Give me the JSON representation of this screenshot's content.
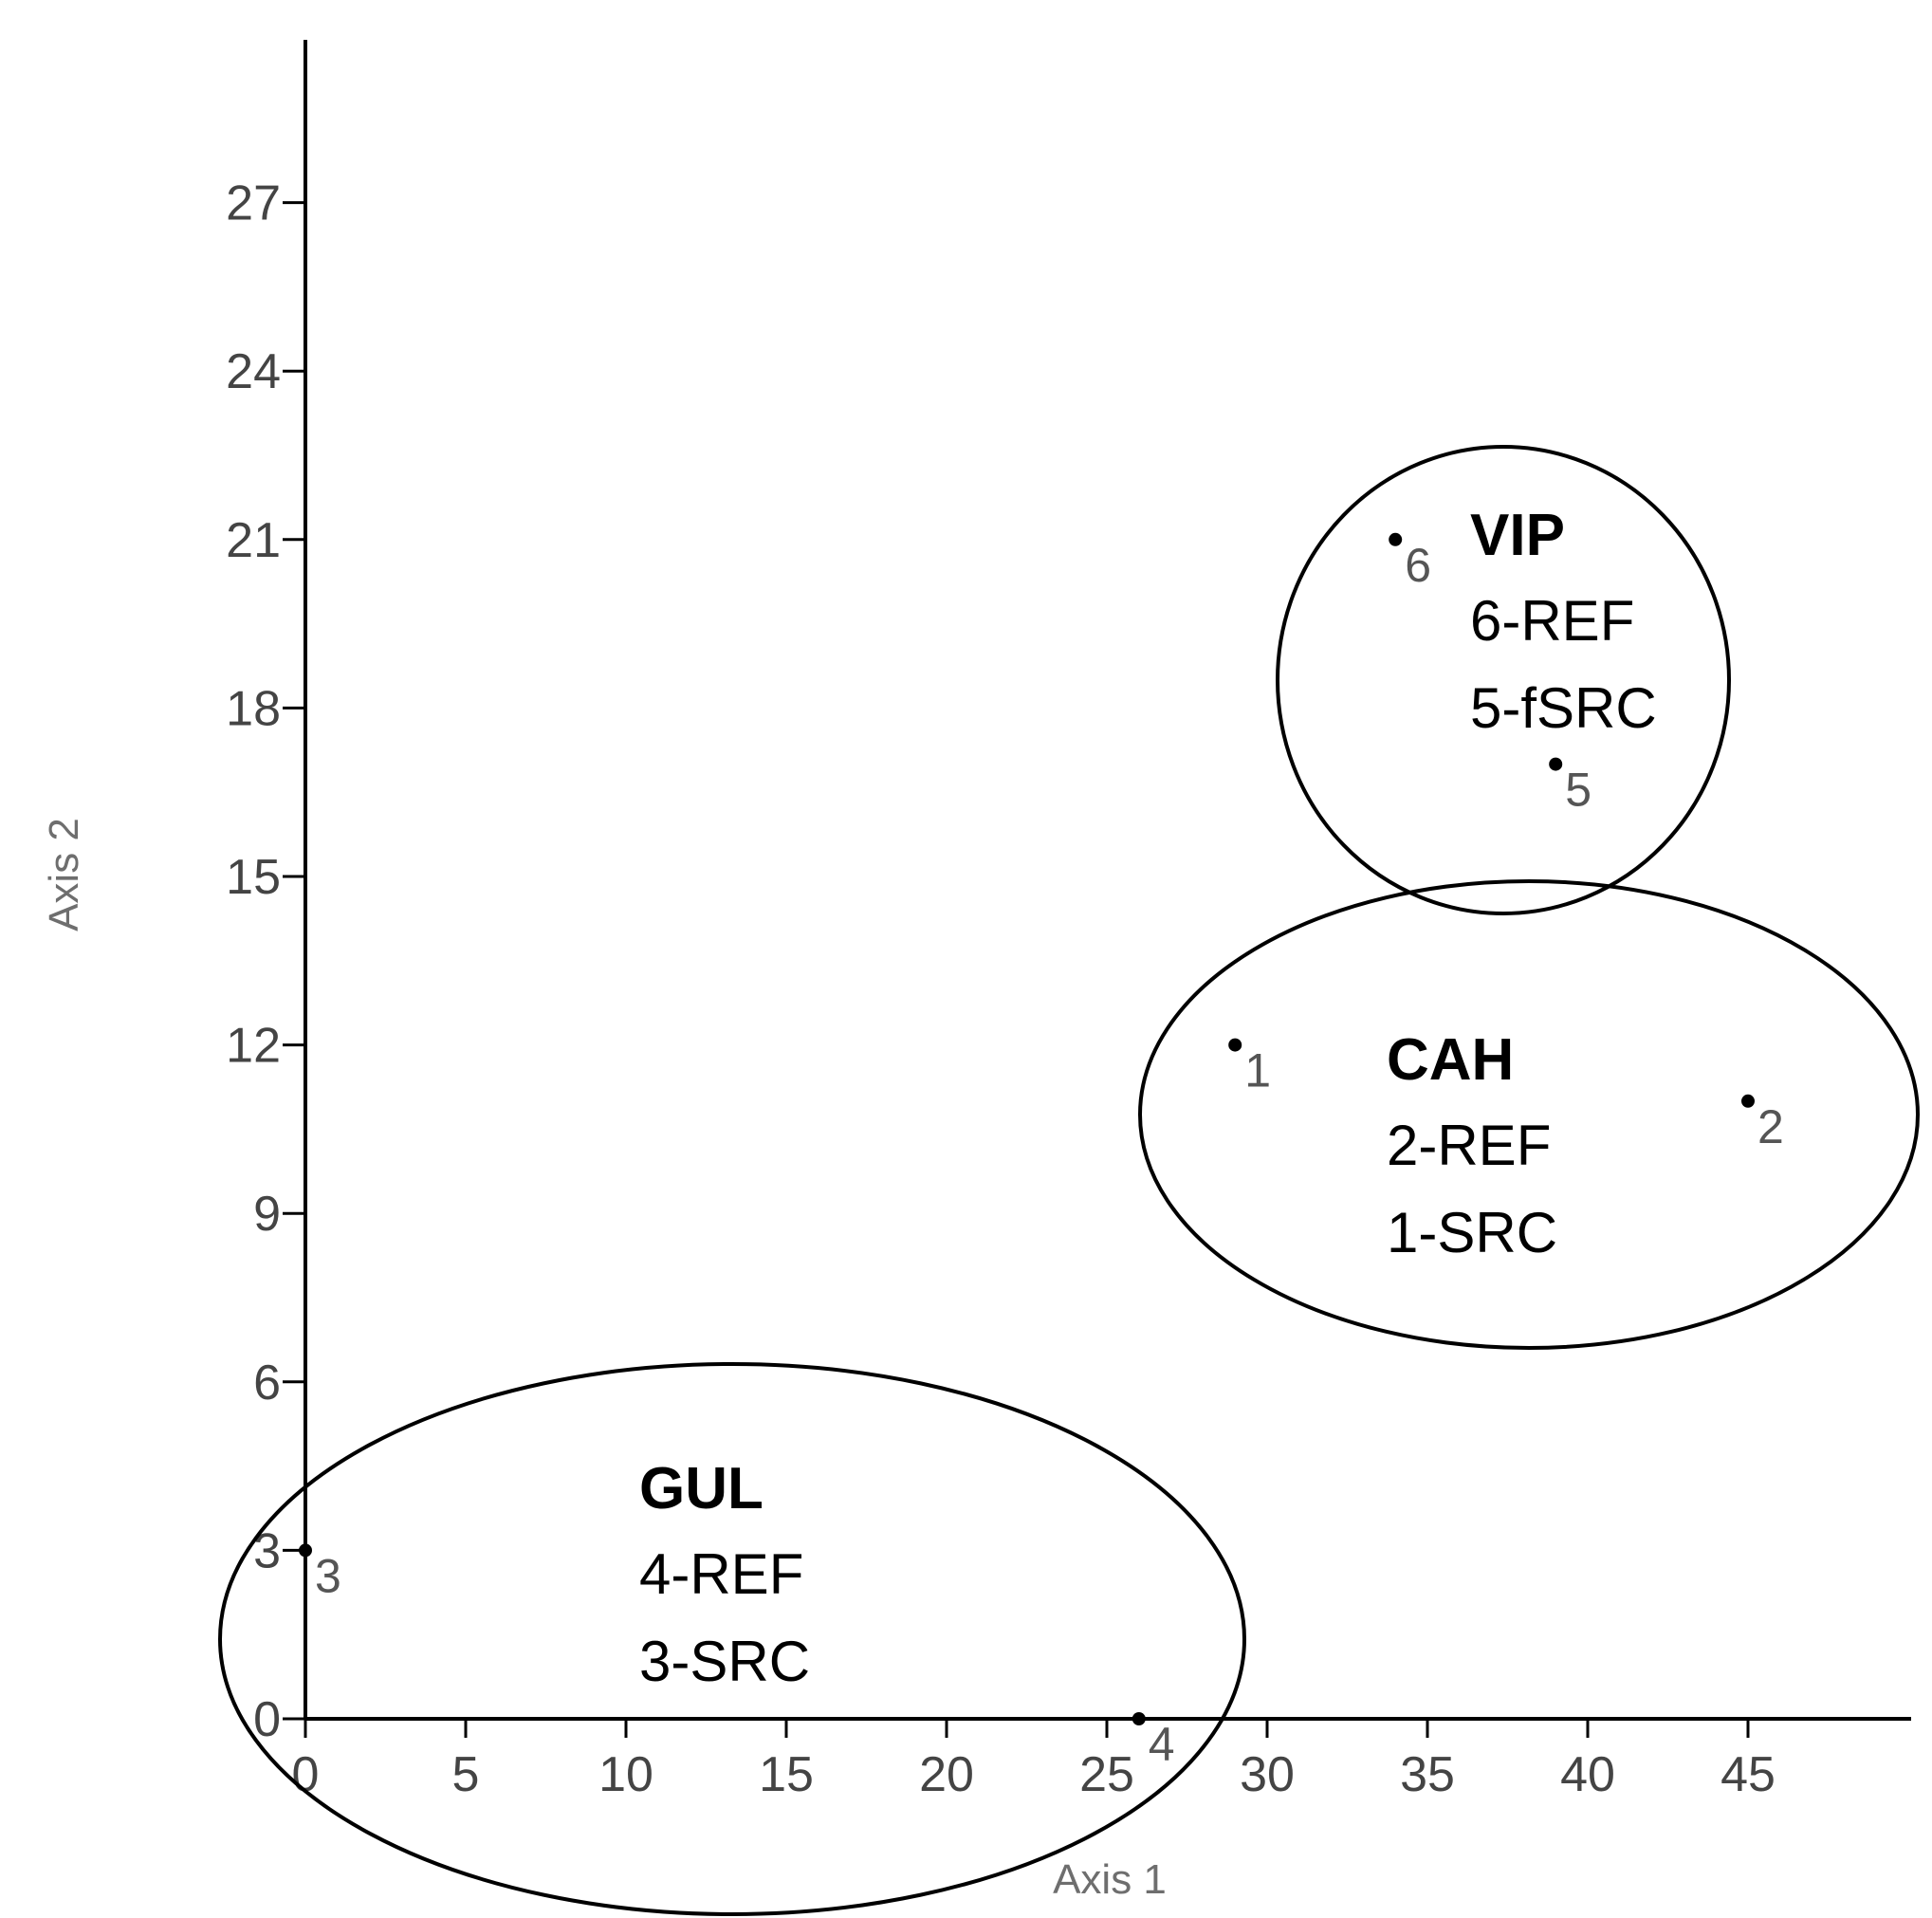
{
  "chart_data": {
    "type": "scatter",
    "xlabel": "Axis 1",
    "ylabel": "Axis 2",
    "xlim": [
      0,
      50
    ],
    "ylim": [
      0,
      30
    ],
    "x_ticks": [
      "0",
      "5",
      "10",
      "15",
      "20",
      "25",
      "30",
      "35",
      "40",
      "45"
    ],
    "y_ticks": [
      "0",
      "3",
      "6",
      "9",
      "12",
      "15",
      "18",
      "21",
      "24",
      "27"
    ],
    "grid": false,
    "points": [
      {
        "label": "1",
        "x": 29,
        "y": 12
      },
      {
        "label": "2",
        "x": 45,
        "y": 11
      },
      {
        "label": "3",
        "x": 0,
        "y": 3
      },
      {
        "label": "4",
        "x": 26,
        "y": 0
      },
      {
        "label": "5",
        "x": 39,
        "y": 17
      },
      {
        "label": "6",
        "x": 34,
        "y": 21
      }
    ],
    "groups": [
      {
        "name": "VIP",
        "lines": [
          "6-REF",
          "5-fSRC"
        ],
        "members": [
          "5",
          "6"
        ]
      },
      {
        "name": "CAH",
        "lines": [
          "2-REF",
          "1-SRC"
        ],
        "members": [
          "1",
          "2"
        ]
      },
      {
        "name": "GUL",
        "lines": [
          "4-REF",
          "3-SRC"
        ],
        "members": [
          "3",
          "4"
        ]
      }
    ]
  }
}
